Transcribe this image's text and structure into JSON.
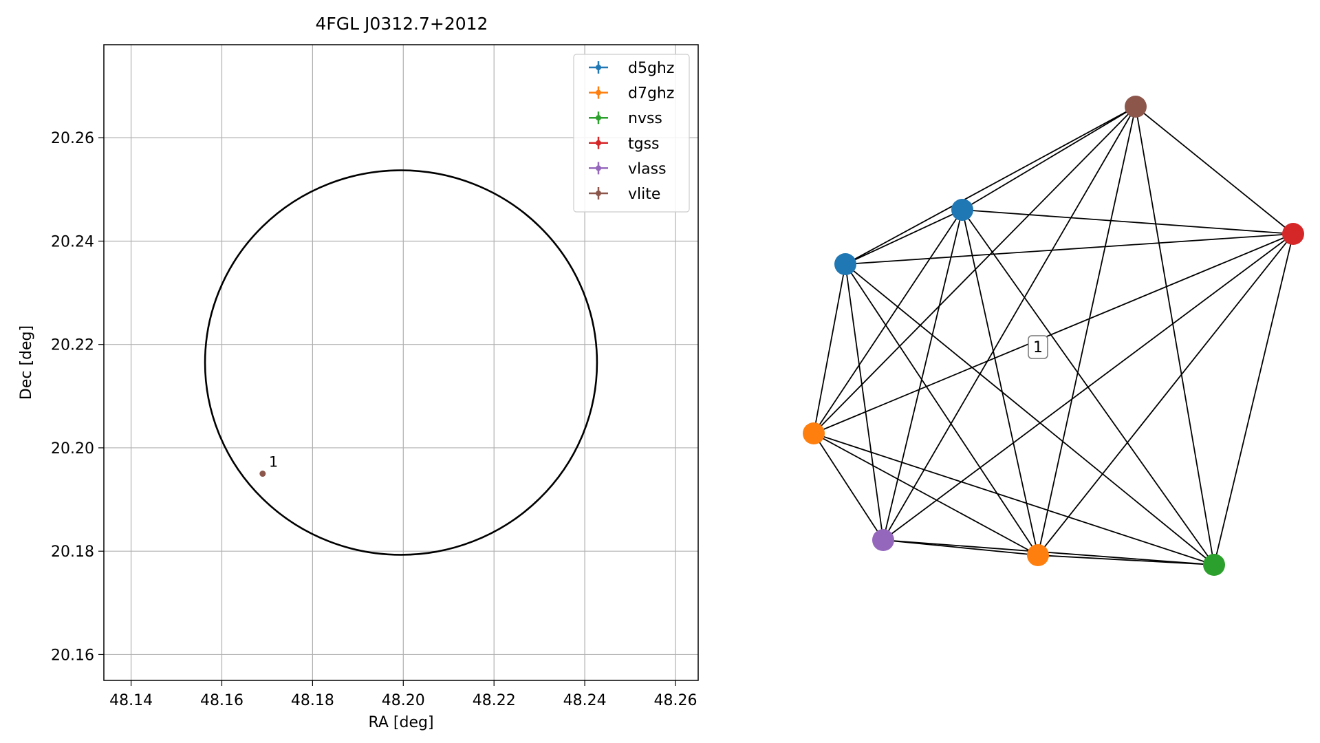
{
  "chart_data": [
    {
      "type": "scatter",
      "title": "4FGL J0312.7+2012",
      "xlabel": "RA [deg]",
      "ylabel": "Dec [deg]",
      "xlim": [
        48.134,
        48.265
      ],
      "ylim": [
        20.155,
        20.278
      ],
      "x_ticks": [
        48.14,
        48.16,
        48.18,
        48.2,
        48.22,
        48.24,
        48.26
      ],
      "x_tick_labels": [
        "48.14",
        "48.16",
        "48.18",
        "48.20",
        "48.22",
        "48.24",
        "48.26"
      ],
      "y_ticks": [
        20.16,
        20.18,
        20.2,
        20.22,
        20.24,
        20.26
      ],
      "y_tick_labels": [
        "20.16",
        "20.18",
        "20.20",
        "20.22",
        "20.24",
        "20.26"
      ],
      "grid": true,
      "legend_placement": "top-right",
      "series": [
        {
          "name": "d5ghz",
          "color": "#1f77b4",
          "x": [],
          "y": []
        },
        {
          "name": "d7ghz",
          "color": "#ff7f0e",
          "x": [],
          "y": []
        },
        {
          "name": "nvss",
          "color": "#2ca02c",
          "x": [],
          "y": []
        },
        {
          "name": "tgss",
          "color": "#d62728",
          "x": [],
          "y": []
        },
        {
          "name": "vlass",
          "color": "#9467bd",
          "x": [],
          "y": []
        },
        {
          "name": "vlite",
          "color": "#8c564b",
          "x": [
            48.169
          ],
          "y": [
            20.195
          ]
        }
      ],
      "ellipse": {
        "center": [
          48.1995,
          20.2165
        ],
        "ra_halfwidth": 0.0432,
        "dec_halfheight": 0.0372,
        "color": "#000000"
      },
      "annotations": [
        {
          "text": "1",
          "x": 48.169,
          "y": 20.195
        }
      ]
    },
    {
      "type": "graph",
      "nodes": [
        {
          "id": "vlite",
          "color": "#8c564b"
        },
        {
          "id": "d5ghz_a",
          "color": "#1f77b4"
        },
        {
          "id": "d5ghz_b",
          "color": "#1f77b4"
        },
        {
          "id": "tgss",
          "color": "#d62728"
        },
        {
          "id": "d7ghz_a",
          "color": "#ff7f0e"
        },
        {
          "id": "vlass",
          "color": "#9467bd"
        },
        {
          "id": "d7ghz_b",
          "color": "#ff7f0e"
        },
        {
          "id": "nvss",
          "color": "#2ca02c"
        }
      ],
      "edges": "complete",
      "label": "1"
    }
  ]
}
